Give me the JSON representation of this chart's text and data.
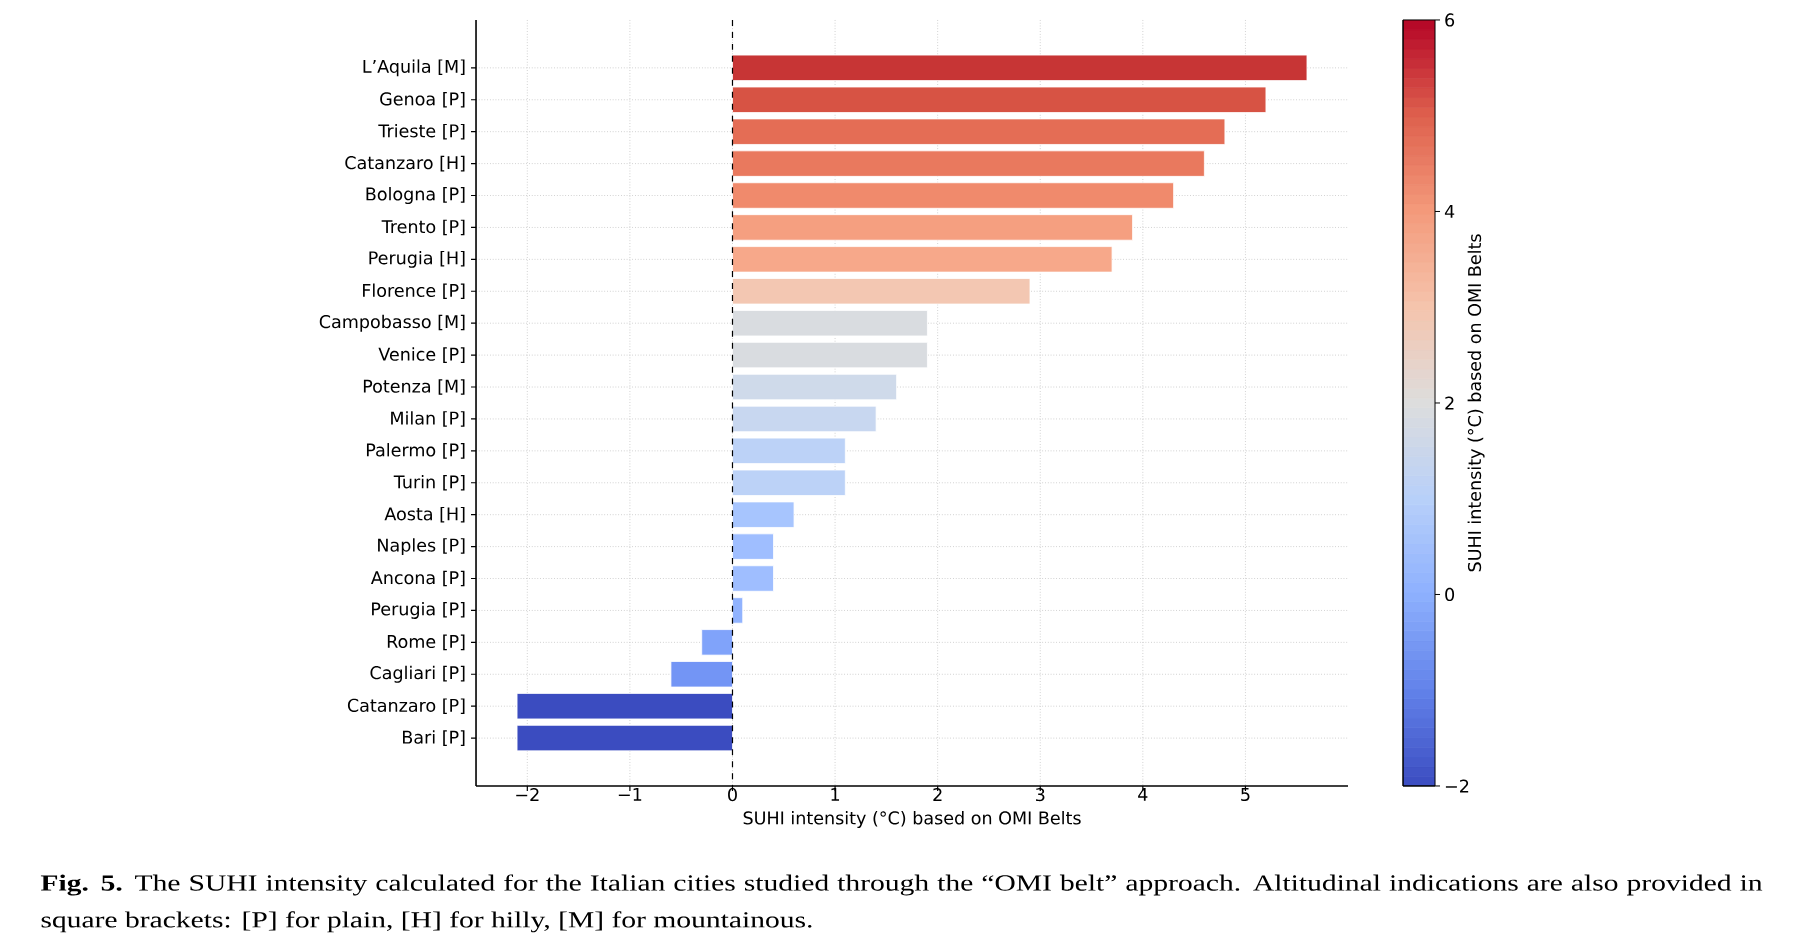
{
  "chart_data": {
    "type": "bar",
    "orientation": "horizontal",
    "xlabel": "SUHI intensity (°C) based on OMI Belts",
    "clabel": "SUHI intensity (°C) based on OMI Belts",
    "categories": [
      "L’Aquila [M]",
      "Genoa [P]",
      "Trieste [P]",
      "Catanzaro [H]",
      "Bologna [P]",
      "Trento [P]",
      "Perugia [H]",
      "Florence [P]",
      "Campobasso [M]",
      "Venice [P]",
      "Potenza [M]",
      "Milan [P]",
      "Palermo [P]",
      "Turin [P]",
      "Aosta [H]",
      "Naples [P]",
      "Ancona [P]",
      "Perugia [P]",
      "Rome [P]",
      "Cagliari [P]",
      "Catanzaro [P]",
      "Bari [P]"
    ],
    "values": [
      5.6,
      5.2,
      4.8,
      4.6,
      4.3,
      3.9,
      3.7,
      2.9,
      1.9,
      1.9,
      1.6,
      1.4,
      1.1,
      1.1,
      0.6,
      0.4,
      0.4,
      0.1,
      -0.3,
      -0.6,
      -2.1,
      -2.1
    ],
    "colors": [
      "#c73535",
      "#d75344",
      "#e46d55",
      "#e9795e",
      "#f08a6c",
      "#f59f80",
      "#f7a88a",
      "#f3c7b2",
      "#d9dce0",
      "#d9dce0",
      "#cfdaea",
      "#c8d7f0",
      "#bcd2f7",
      "#bcd2f7",
      "#a7c5fe",
      "#9fbeff",
      "#9fbeff",
      "#91b3fe",
      "#80a3fa",
      "#7395f5",
      "#3b4cc0",
      "#3b4cc0"
    ],
    "xlim": [
      -2.5,
      6
    ],
    "xticks": [
      {
        "value": -2,
        "label": "−2"
      },
      {
        "value": -1,
        "label": "−1"
      },
      0,
      1,
      2,
      3,
      4,
      5
    ],
    "clim": [
      -2,
      6
    ],
    "cticks": [
      {
        "value": -2,
        "label": "−2"
      },
      0,
      2,
      4,
      6
    ],
    "grid": true,
    "ref_lines": [
      {
        "axis": "x",
        "value": 0,
        "color": "#000000",
        "line_style": "dashed"
      }
    ],
    "annotations": [
      "**Fig. 5.** The SUHI intensity calculated for the Italian cities studied through the “OMI belt” approach. Altitudinal indications are also provided in square brackets: [P] for plain, [H] for hilly, [M] for mountainous."
    ]
  }
}
